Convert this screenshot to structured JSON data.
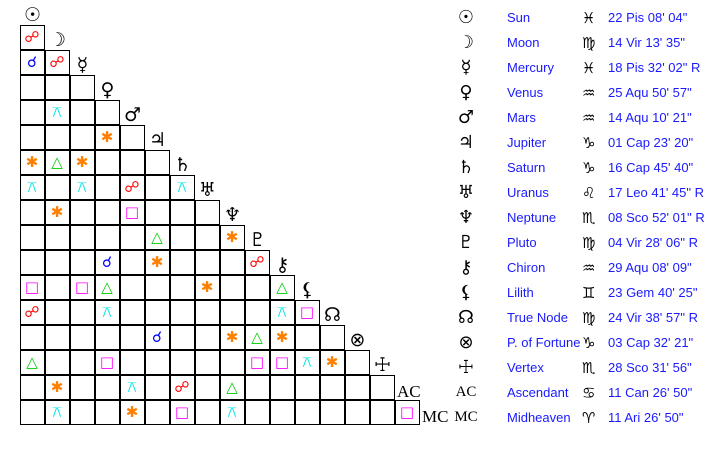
{
  "bodies": [
    {
      "name": "Sun",
      "glyph": "☉",
      "icon": "sun-icon",
      "sign_glyph": "♓",
      "sign_icon": "pisces-icon",
      "position": "22 Pis 08' 04\""
    },
    {
      "name": "Moon",
      "glyph": "☽",
      "icon": "moon-icon",
      "sign_glyph": "♍",
      "sign_icon": "virgo-icon",
      "position": "14 Vir 13' 35\""
    },
    {
      "name": "Mercury",
      "glyph": "☿",
      "icon": "mercury-icon",
      "sign_glyph": "♓",
      "sign_icon": "pisces-icon",
      "position": "18 Pis 32' 02\" R"
    },
    {
      "name": "Venus",
      "glyph": "♀",
      "icon": "venus-icon",
      "sign_glyph": "♒",
      "sign_icon": "aquarius-icon",
      "position": "25 Aqu 50' 57\""
    },
    {
      "name": "Mars",
      "glyph": "♂",
      "icon": "mars-icon",
      "sign_glyph": "♒",
      "sign_icon": "aquarius-icon",
      "position": "14 Aqu 10' 21\""
    },
    {
      "name": "Jupiter",
      "glyph": "♃",
      "icon": "jupiter-icon",
      "sign_glyph": "♑",
      "sign_icon": "capricorn-icon",
      "position": "01 Cap 23' 20\""
    },
    {
      "name": "Saturn",
      "glyph": "♄",
      "icon": "saturn-icon",
      "sign_glyph": "♑",
      "sign_icon": "capricorn-icon",
      "position": "16 Cap 45' 40\""
    },
    {
      "name": "Uranus",
      "glyph": "♅",
      "icon": "uranus-icon",
      "sign_glyph": "♌",
      "sign_icon": "leo-icon",
      "position": "17 Leo 41' 45\" R"
    },
    {
      "name": "Neptune",
      "glyph": "♆",
      "icon": "neptune-icon",
      "sign_glyph": "♏",
      "sign_icon": "scorpio-icon",
      "position": "08 Sco 52' 01\" R"
    },
    {
      "name": "Pluto",
      "glyph": "♇",
      "icon": "pluto-icon",
      "sign_glyph": "♍",
      "sign_icon": "virgo-icon",
      "position": "04 Vir 28' 06\" R"
    },
    {
      "name": "Chiron",
      "glyph": "⚷",
      "icon": "chiron-icon",
      "sign_glyph": "♒",
      "sign_icon": "aquarius-icon",
      "position": "29 Aqu 08' 09\""
    },
    {
      "name": "Lilith",
      "glyph": "⚸",
      "icon": "lilith-icon",
      "sign_glyph": "♊",
      "sign_icon": "gemini-icon",
      "position": "23 Gem 40' 25\""
    },
    {
      "name": "True Node",
      "glyph": "☊",
      "icon": "north-node-icon",
      "sign_glyph": "♍",
      "sign_icon": "virgo-icon",
      "position": "24 Vir 38' 57\" R"
    },
    {
      "name": "P. of Fortune",
      "glyph": "⊗",
      "icon": "part-of-fortune-icon",
      "sign_glyph": "♑",
      "sign_icon": "capricorn-icon",
      "position": "03 Cap 32' 21\""
    },
    {
      "name": "Vertex",
      "glyph": "☩",
      "icon": "vertex-icon",
      "sign_glyph": "♏",
      "sign_icon": "scorpio-icon",
      "position": "28 Sco 31' 56\""
    },
    {
      "name": "Ascendant",
      "glyph": "AC",
      "icon": "ascendant-label",
      "sign_glyph": "♋",
      "sign_icon": "cancer-icon",
      "position": "11 Can 26' 50\""
    },
    {
      "name": "Midheaven",
      "glyph": "MC",
      "icon": "midheaven-label",
      "sign_glyph": "♈",
      "sign_icon": "aries-icon",
      "position": "11 Ari 26' 50\""
    }
  ],
  "aspect_types": {
    "opposition": {
      "glyph": "☍",
      "color": "#ff0000"
    },
    "conjunction": {
      "glyph": "☌",
      "color": "#0000ff"
    },
    "quincunx": {
      "glyph": "⚻",
      "color": "#00e5e5"
    },
    "sextile": {
      "glyph": "✱",
      "color": "#ff8000"
    },
    "trine": {
      "glyph": "△",
      "color": "#00cc00"
    },
    "square": {
      "glyph": "□",
      "color": "#ff00ff"
    }
  },
  "aspects": [
    [
      1,
      0,
      "opposition"
    ],
    [
      2,
      0,
      "conjunction"
    ],
    [
      2,
      1,
      "opposition"
    ],
    [
      4,
      1,
      "quincunx"
    ],
    [
      5,
      3,
      "sextile"
    ],
    [
      6,
      0,
      "sextile"
    ],
    [
      6,
      1,
      "trine"
    ],
    [
      6,
      2,
      "sextile"
    ],
    [
      7,
      0,
      "quincunx"
    ],
    [
      7,
      2,
      "quincunx"
    ],
    [
      7,
      4,
      "opposition"
    ],
    [
      7,
      6,
      "quincunx"
    ],
    [
      8,
      1,
      "sextile"
    ],
    [
      8,
      4,
      "square"
    ],
    [
      9,
      5,
      "trine"
    ],
    [
      9,
      8,
      "sextile"
    ],
    [
      10,
      3,
      "conjunction"
    ],
    [
      10,
      5,
      "sextile"
    ],
    [
      10,
      9,
      "opposition"
    ],
    [
      11,
      0,
      "square"
    ],
    [
      11,
      2,
      "square"
    ],
    [
      11,
      3,
      "trine"
    ],
    [
      11,
      7,
      "sextile"
    ],
    [
      11,
      10,
      "trine"
    ],
    [
      12,
      0,
      "opposition"
    ],
    [
      12,
      3,
      "quincunx"
    ],
    [
      12,
      10,
      "quincunx"
    ],
    [
      12,
      11,
      "square"
    ],
    [
      13,
      5,
      "conjunction"
    ],
    [
      13,
      8,
      "sextile"
    ],
    [
      13,
      9,
      "trine"
    ],
    [
      13,
      10,
      "sextile"
    ],
    [
      14,
      0,
      "trine"
    ],
    [
      14,
      3,
      "square"
    ],
    [
      14,
      9,
      "square"
    ],
    [
      14,
      10,
      "square"
    ],
    [
      14,
      11,
      "quincunx"
    ],
    [
      14,
      12,
      "sextile"
    ],
    [
      15,
      1,
      "sextile"
    ],
    [
      15,
      4,
      "quincunx"
    ],
    [
      15,
      6,
      "opposition"
    ],
    [
      15,
      8,
      "trine"
    ],
    [
      16,
      1,
      "quincunx"
    ],
    [
      16,
      4,
      "sextile"
    ],
    [
      16,
      6,
      "square"
    ],
    [
      16,
      8,
      "quincunx"
    ],
    [
      16,
      15,
      "square"
    ]
  ]
}
